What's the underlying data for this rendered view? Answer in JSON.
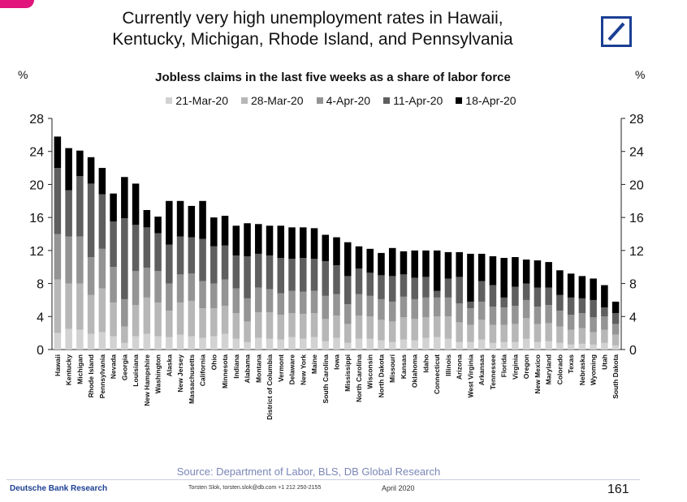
{
  "page": {
    "title_line1": "Currently very high unemployment rates in Hawaii,",
    "title_line2": "Kentucky, Michigan, Rhode Island, and Pennsylvania",
    "source": "Source: Department of Labor, BLS, DB Global Research",
    "brand": "Deutsche Bank Research",
    "contact": "Torsten Slok, torsten.slok@db.com +1 212 250-2155",
    "date": "April 2020",
    "page_number": "161"
  },
  "colors": {
    "21-Mar-20": "#d2d2d2",
    "28-Mar-20": "#b7b7b7",
    "4-Apr-20": "#949494",
    "11-Apr-20": "#5f5f5f",
    "18-Apr-20": "#000000",
    "brand": "#1c3f94",
    "corner": "#e0147a"
  },
  "chart_data": {
    "type": "bar",
    "stacked": true,
    "title": "Jobless claims in the last five weeks as a share of labor force",
    "ylabel": "%",
    "y2label": "%",
    "ylim": [
      0,
      28
    ],
    "yticks": [
      0,
      4,
      8,
      12,
      16,
      20,
      24,
      28
    ],
    "legend_position": "top",
    "categories": [
      "Hawaii",
      "Kentucky",
      "Michigan",
      "Rhode Island",
      "Pennsylvania",
      "Nevada",
      "Georgia",
      "Louisiana",
      "New Hampshire",
      "Washington",
      "Alaska",
      "New Jersey",
      "Massachusetts",
      "California",
      "Ohio",
      "Minnesota",
      "Indiana",
      "Alabama",
      "Montana",
      "District of Columbia",
      "Vermont",
      "Delaware",
      "New York",
      "Maine",
      "South Carolina",
      "Iowa",
      "Mississippi",
      "North Carolina",
      "Wisconsin",
      "North Dakota",
      "Missouri",
      "Kansas",
      "Oklahoma",
      "Idaho",
      "Connecticut",
      "Illinois",
      "Arizona",
      "West Virginia",
      "Arkansas",
      "Tennessee",
      "Florida",
      "Virginia",
      "Oregon",
      "New Mexico",
      "Maryland",
      "Colorado",
      "Texas",
      "Nebraska",
      "Wyoming",
      "Utah",
      "South Dakota"
    ],
    "series": [
      {
        "name": "21-Mar-20",
        "values": [
          2.0,
          2.5,
          2.4,
          1.9,
          2.1,
          1.6,
          0.8,
          1.6,
          1.9,
          1.6,
          1.5,
          1.8,
          1.6,
          1.4,
          1.6,
          1.9,
          1.3,
          0.9,
          1.4,
          1.3,
          1.2,
          1.5,
          1.3,
          1.5,
          1.0,
          1.4,
          0.8,
          1.3,
          1.3,
          1.1,
          0.9,
          1.2,
          1.1,
          1.4,
          1.5,
          1.3,
          0.9,
          0.9,
          1.2,
          0.8,
          0.9,
          0.9,
          1.3,
          0.9,
          1.0,
          0.8,
          0.6,
          0.7,
          0.6,
          0.8,
          0.5
        ]
      },
      {
        "name": "28-Mar-20",
        "values": [
          6.5,
          5.5,
          5.6,
          4.7,
          5.3,
          4.1,
          2.0,
          3.8,
          4.4,
          4.1,
          3.2,
          3.9,
          4.3,
          3.6,
          3.4,
          3.4,
          3.1,
          2.5,
          3.1,
          3.2,
          3.0,
          2.9,
          3.0,
          2.9,
          2.7,
          2.7,
          2.3,
          2.8,
          2.7,
          2.5,
          2.5,
          2.7,
          2.6,
          2.5,
          2.5,
          2.7,
          2.4,
          2.1,
          2.4,
          2.2,
          2.1,
          2.2,
          2.5,
          2.2,
          2.2,
          2.0,
          1.8,
          1.9,
          1.5,
          1.6,
          1.3
        ]
      },
      {
        "name": "4-Apr-20",
        "values": [
          5.5,
          5.7,
          5.7,
          4.6,
          4.8,
          4.3,
          3.3,
          4.1,
          3.6,
          3.8,
          3.3,
          3.4,
          3.3,
          3.3,
          3.0,
          3.2,
          3.0,
          2.8,
          3.0,
          2.8,
          2.6,
          2.7,
          2.7,
          2.7,
          2.8,
          2.6,
          2.4,
          2.6,
          2.5,
          2.5,
          2.4,
          2.5,
          2.4,
          2.4,
          2.3,
          2.3,
          2.3,
          2.0,
          2.2,
          2.2,
          2.1,
          2.2,
          2.2,
          2.1,
          2.2,
          1.9,
          1.8,
          1.8,
          1.8,
          1.6,
          1.3
        ]
      },
      {
        "name": "11-Apr-20",
        "values": [
          8.0,
          5.6,
          7.3,
          8.9,
          6.6,
          5.5,
          9.8,
          5.6,
          4.9,
          4.6,
          4.7,
          4.6,
          4.4,
          5.1,
          4.5,
          4.1,
          4.0,
          5.1,
          4.1,
          4.1,
          4.3,
          3.9,
          4.1,
          3.9,
          4.2,
          3.5,
          3.4,
          3.1,
          2.8,
          2.9,
          3.1,
          2.7,
          2.6,
          2.5,
          0.8,
          2.3,
          3.2,
          0.8,
          2.5,
          2.6,
          1.2,
          2.3,
          2.0,
          2.3,
          2.1,
          1.9,
          2.1,
          1.8,
          2.1,
          1.1,
          1.3
        ]
      },
      {
        "name": "18-Apr-20",
        "values": [
          3.8,
          5.1,
          3.1,
          3.2,
          3.2,
          3.4,
          5.0,
          5.0,
          2.1,
          2.0,
          5.3,
          4.3,
          3.8,
          4.6,
          3.5,
          3.6,
          3.6,
          4.0,
          3.6,
          3.6,
          3.9,
          3.8,
          3.7,
          3.7,
          3.2,
          3.4,
          4.1,
          2.7,
          2.9,
          2.7,
          3.4,
          2.8,
          3.3,
          3.2,
          4.9,
          3.2,
          3.0,
          5.8,
          3.3,
          3.5,
          4.8,
          3.6,
          2.9,
          3.3,
          3.1,
          3.0,
          2.9,
          2.7,
          2.6,
          2.7,
          1.4
        ]
      }
    ]
  }
}
